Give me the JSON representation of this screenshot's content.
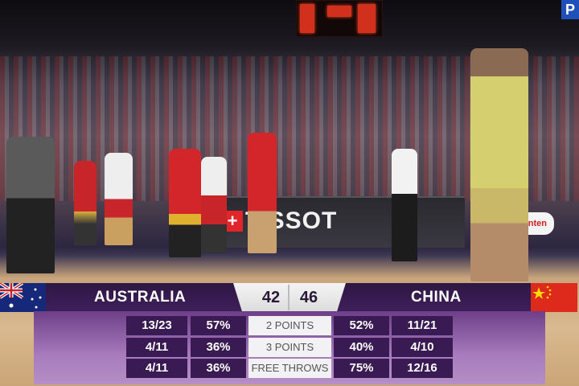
{
  "broadcaster_logo": "P",
  "ad_board": {
    "brand": "TISSOT",
    "secondary_brand": "Ganten"
  },
  "scoreboard": {
    "home": {
      "name": "AUSTRALIA",
      "score": "42",
      "flag": "australia-flag"
    },
    "away": {
      "name": "CHINA",
      "score": "46",
      "flag": "china-flag"
    }
  },
  "stats": [
    {
      "label": "2 POINTS",
      "home_made": "13/23",
      "home_pct": "57%",
      "away_pct": "52%",
      "away_made": "11/21"
    },
    {
      "label": "3 POINTS",
      "home_made": "4/11",
      "home_pct": "36%",
      "away_pct": "40%",
      "away_made": "4/10"
    },
    {
      "label": "FREE THROWS",
      "home_made": "4/11",
      "home_pct": "36%",
      "away_pct": "75%",
      "away_made": "12/16"
    }
  ],
  "colors": {
    "bar": "#3f1f5a",
    "panel": "#a77bbd",
    "cell": "#3a1a52",
    "label_bg": "#f2f2f4"
  }
}
